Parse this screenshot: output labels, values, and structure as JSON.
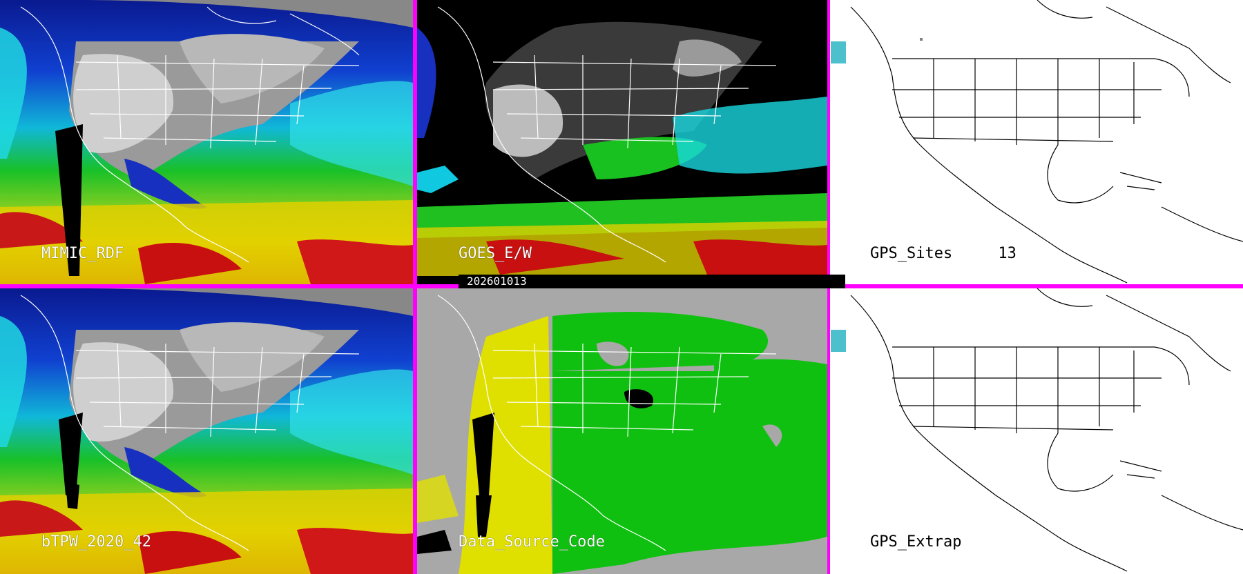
{
  "panels": [
    {
      "label": "MIMIC_RDF",
      "style": "tpw-color"
    },
    {
      "label": "GOES_E/W",
      "style": "goes-masked"
    },
    {
      "label": "GPS_Sites     13",
      "style": "basemap-white"
    },
    {
      "label": "bTPW_2020_42",
      "style": "tpw-color"
    },
    {
      "label": "Data_Source_Code",
      "style": "source-code"
    },
    {
      "label": "GPS_Extrap",
      "style": "basemap-white"
    }
  ],
  "date_stamp": "202601013",
  "colors": {
    "separator": "#ff00ff",
    "tpw_ramp": [
      "#7a7a7a",
      "#d8d8d8",
      "#1a2fc8",
      "#00b8ff",
      "#22d8e8",
      "#18c020",
      "#8ad020",
      "#e8e800",
      "#e8a000",
      "#c81010"
    ],
    "source_gray": "#a8a8a8",
    "source_yellow": "#e0e000",
    "source_green": "#10c010"
  }
}
